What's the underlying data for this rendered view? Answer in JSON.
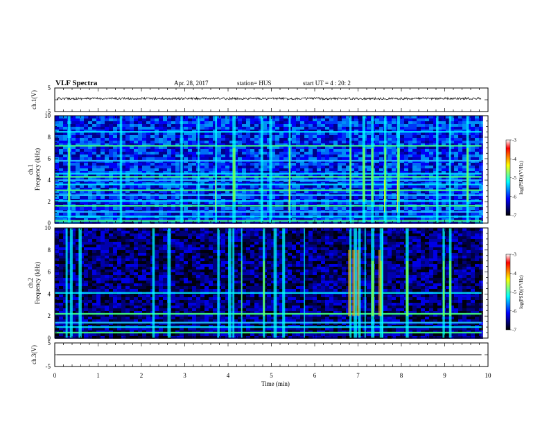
{
  "header": {
    "title": "VLF Spectra",
    "date": "Apr. 28, 2017",
    "station": "station= HUS",
    "start": "start UT =  4 : 20: 2"
  },
  "chart_data": [
    {
      "type": "line",
      "name": "ch1-waveform",
      "ylabel": "ch.1(V)",
      "ylim": [
        -5,
        5
      ],
      "yticks": [
        "5",
        "-5"
      ],
      "level": 0.5,
      "x_end": 9.85
    },
    {
      "type": "heatmap",
      "name": "ch1-spectrogram",
      "ylabel": "ch.1\nFrequency (kHz)",
      "ylim": [
        0,
        10
      ],
      "yticks": [
        "0",
        "2",
        "4",
        "6",
        "8",
        "10"
      ],
      "colorbar": {
        "label": "log(PSD)(V²/Hz)",
        "range": [
          -7,
          -3
        ],
        "ticks": [
          "-3",
          "-4",
          "-5",
          "-6",
          "-7"
        ]
      },
      "colormap": [
        "#000000",
        "#00007f",
        "#0000ff",
        "#0080ff",
        "#00ffff",
        "#80ff80",
        "#ffff00",
        "#ff8000",
        "#ff0000",
        "#ffffff"
      ],
      "horizontal_bands_khz": [
        0.2,
        0.6,
        1.05,
        1.6,
        2.05,
        2.6,
        3.05,
        3.6,
        4.0,
        4.3,
        4.6,
        5.8,
        7.2,
        8.5
      ],
      "bursts_min": [
        0.3,
        1.5,
        2.9,
        3.3,
        3.7,
        4.1,
        4.75,
        4.95,
        5.4,
        6.8,
        7.1,
        7.3,
        7.6,
        7.9,
        8.8,
        9.1,
        9.5
      ]
    },
    {
      "type": "heatmap",
      "name": "ch2-spectrogram",
      "ylabel": "ch.2\nFrequency (kHz)",
      "ylim": [
        0,
        10
      ],
      "yticks": [
        "0",
        "2",
        "4",
        "6",
        "8",
        "10"
      ],
      "colorbar": {
        "label": "log(PSD)(V²/Hz)",
        "range": [
          -7,
          -3
        ],
        "ticks": [
          "-3",
          "-4",
          "-5",
          "-6",
          "-7"
        ]
      },
      "colormap": [
        "#000000",
        "#00007f",
        "#0000ff",
        "#0080ff",
        "#00ffff",
        "#80ff80",
        "#ffff00",
        "#ff8000",
        "#ff0000",
        "#ffffff"
      ],
      "horizontal_bands_khz": [
        0.5,
        1.0,
        1.4,
        2.2,
        4.1
      ],
      "bursts_min": [
        0.25,
        0.35,
        0.55,
        2.25,
        2.6,
        3.75,
        4.0,
        4.1,
        4.3,
        4.8,
        5.05,
        5.25,
        5.75,
        6.8,
        6.9,
        7.0,
        7.15,
        7.3,
        7.5,
        7.55,
        8.1,
        8.95,
        9.1
      ]
    },
    {
      "type": "line",
      "name": "ch3-waveform",
      "ylabel": "ch.3(V)",
      "ylim": [
        -5,
        5
      ],
      "yticks": [
        "5",
        "-5"
      ],
      "level": 0,
      "x_end": 9.85
    }
  ],
  "x_axis": {
    "label": "Time (min)",
    "xlim": [
      0,
      10
    ],
    "ticks": [
      "0",
      "1",
      "2",
      "3",
      "4",
      "5",
      "6",
      "7",
      "8",
      "9",
      "10"
    ]
  }
}
